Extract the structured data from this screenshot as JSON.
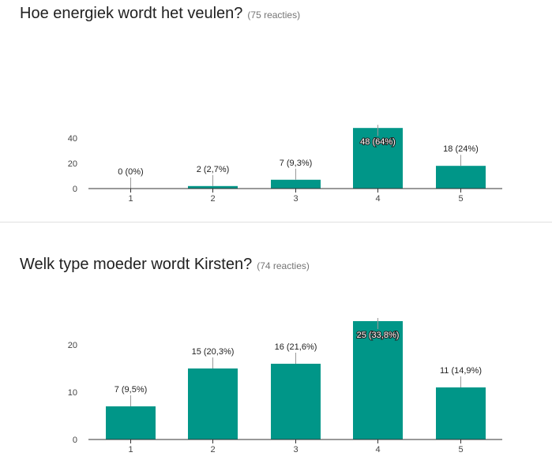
{
  "questions": [
    {
      "title": "Hoe energiek wordt het veulen?",
      "count_text": "(75 reacties)"
    },
    {
      "title": "Welk type moeder wordt Kirsten?",
      "count_text": "(74 reacties)"
    }
  ],
  "colors": {
    "bar": "#009688",
    "axis": "#333333",
    "leader": "#999999"
  },
  "chart_data": [
    {
      "type": "bar",
      "categories": [
        "1",
        "2",
        "3",
        "4",
        "5"
      ],
      "values": [
        0,
        2,
        7,
        48,
        18
      ],
      "data_labels": [
        "0 (0%)",
        "2 (2,7%)",
        "7 (9,3%)",
        "48 (64%)",
        "18 (24%)"
      ],
      "yticks": [
        "0",
        "20",
        "40"
      ],
      "ylim": [
        0,
        48
      ],
      "grid": false,
      "legend": "none"
    },
    {
      "type": "bar",
      "categories": [
        "1",
        "2",
        "3",
        "4",
        "5"
      ],
      "values": [
        7,
        15,
        16,
        25,
        11
      ],
      "data_labels": [
        "7 (9,5%)",
        "15 (20,3%)",
        "16 (21,6%)",
        "25 (33,8%)",
        "11 (14,9%)"
      ],
      "yticks": [
        "0",
        "10",
        "20"
      ],
      "ylim": [
        0,
        25
      ],
      "grid": false,
      "legend": "none"
    }
  ]
}
